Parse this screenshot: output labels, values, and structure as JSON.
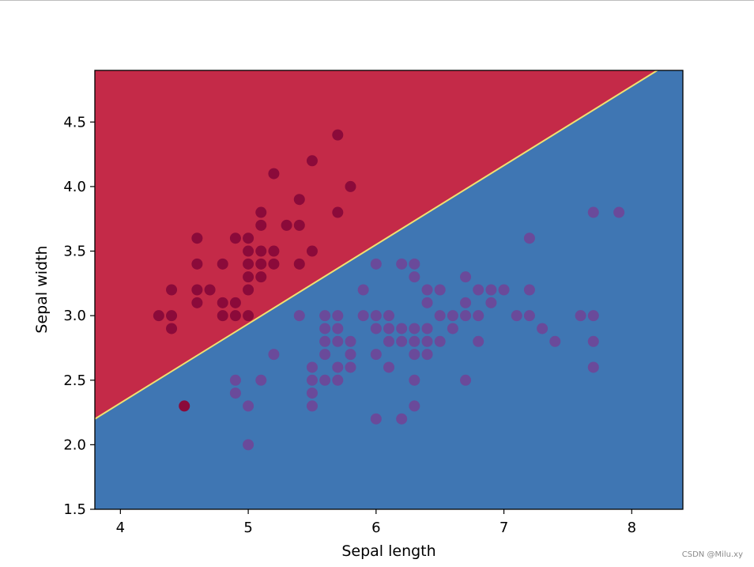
{
  "chart_data": {
    "type": "scatter",
    "title": "",
    "xlabel": "Sepal length",
    "ylabel": "Sepal width",
    "xlim": [
      3.8,
      8.4
    ],
    "ylim": [
      1.5,
      4.9
    ],
    "xticks": [
      "4",
      "5",
      "6",
      "7",
      "8"
    ],
    "yticks": [
      "1.5",
      "2.0",
      "2.5",
      "3.0",
      "3.5",
      "4.0",
      "4.5"
    ],
    "grid": false,
    "legend": "none",
    "decision_regions": {
      "boundary_line": [
        [
          3.8,
          2.2
        ],
        [
          8.2,
          4.9
        ]
      ],
      "above_color": "#c42a48",
      "below_color": "#3f76b3",
      "boundary_color": "#f0e070"
    },
    "series": [
      {
        "color": "#8b0a3a",
        "points": [
          [
            4.3,
            3.0
          ],
          [
            4.4,
            2.9
          ],
          [
            4.4,
            3.0
          ],
          [
            4.4,
            3.2
          ],
          [
            4.5,
            2.3
          ],
          [
            4.6,
            3.1
          ],
          [
            4.6,
            3.2
          ],
          [
            4.6,
            3.4
          ],
          [
            4.6,
            3.6
          ],
          [
            4.7,
            3.2
          ],
          [
            4.8,
            3.0
          ],
          [
            4.8,
            3.1
          ],
          [
            4.8,
            3.4
          ],
          [
            4.9,
            3.0
          ],
          [
            4.9,
            3.1
          ],
          [
            4.9,
            3.6
          ],
          [
            5.0,
            3.0
          ],
          [
            5.0,
            3.2
          ],
          [
            5.0,
            3.3
          ],
          [
            5.0,
            3.4
          ],
          [
            5.0,
            3.5
          ],
          [
            5.0,
            3.6
          ],
          [
            5.1,
            3.3
          ],
          [
            5.1,
            3.4
          ],
          [
            5.1,
            3.5
          ],
          [
            5.1,
            3.7
          ],
          [
            5.1,
            3.8
          ],
          [
            5.2,
            3.4
          ],
          [
            5.2,
            3.5
          ],
          [
            5.2,
            4.1
          ],
          [
            5.3,
            3.7
          ],
          [
            5.4,
            3.4
          ],
          [
            5.4,
            3.7
          ],
          [
            5.4,
            3.9
          ],
          [
            5.5,
            3.5
          ],
          [
            5.5,
            4.2
          ],
          [
            5.7,
            3.8
          ],
          [
            5.7,
            4.4
          ],
          [
            5.8,
            4.0
          ]
        ]
      },
      {
        "color": "#6a4a9a",
        "points": [
          [
            4.9,
            2.4
          ],
          [
            4.9,
            2.5
          ],
          [
            5.0,
            2.0
          ],
          [
            5.0,
            2.3
          ],
          [
            5.1,
            2.5
          ],
          [
            5.2,
            2.7
          ],
          [
            5.4,
            3.0
          ],
          [
            5.5,
            2.3
          ],
          [
            5.5,
            2.4
          ],
          [
            5.5,
            2.5
          ],
          [
            5.5,
            2.6
          ],
          [
            5.6,
            2.5
          ],
          [
            5.6,
            2.7
          ],
          [
            5.6,
            2.8
          ],
          [
            5.6,
            2.9
          ],
          [
            5.6,
            3.0
          ],
          [
            5.7,
            2.5
          ],
          [
            5.7,
            2.6
          ],
          [
            5.7,
            2.8
          ],
          [
            5.7,
            2.9
          ],
          [
            5.7,
            3.0
          ],
          [
            5.8,
            2.6
          ],
          [
            5.8,
            2.7
          ],
          [
            5.8,
            2.8
          ],
          [
            5.9,
            3.0
          ],
          [
            5.9,
            3.2
          ],
          [
            6.0,
            2.2
          ],
          [
            6.0,
            2.7
          ],
          [
            6.0,
            2.9
          ],
          [
            6.0,
            3.0
          ],
          [
            6.0,
            3.4
          ],
          [
            6.1,
            2.6
          ],
          [
            6.1,
            2.8
          ],
          [
            6.1,
            2.9
          ],
          [
            6.1,
            3.0
          ],
          [
            6.2,
            2.2
          ],
          [
            6.2,
            2.8
          ],
          [
            6.2,
            2.9
          ],
          [
            6.2,
            3.4
          ],
          [
            6.3,
            2.3
          ],
          [
            6.3,
            2.5
          ],
          [
            6.3,
            2.7
          ],
          [
            6.3,
            2.8
          ],
          [
            6.3,
            2.9
          ],
          [
            6.3,
            3.3
          ],
          [
            6.3,
            3.4
          ],
          [
            6.4,
            2.7
          ],
          [
            6.4,
            2.8
          ],
          [
            6.4,
            2.9
          ],
          [
            6.4,
            3.1
          ],
          [
            6.4,
            3.2
          ],
          [
            6.5,
            2.8
          ],
          [
            6.5,
            3.0
          ],
          [
            6.5,
            3.2
          ],
          [
            6.6,
            2.9
          ],
          [
            6.6,
            3.0
          ],
          [
            6.7,
            2.5
          ],
          [
            6.7,
            3.0
          ],
          [
            6.7,
            3.1
          ],
          [
            6.7,
            3.3
          ],
          [
            6.8,
            2.8
          ],
          [
            6.8,
            3.0
          ],
          [
            6.8,
            3.2
          ],
          [
            6.9,
            3.1
          ],
          [
            6.9,
            3.2
          ],
          [
            7.0,
            3.2
          ],
          [
            7.1,
            3.0
          ],
          [
            7.2,
            3.0
          ],
          [
            7.2,
            3.2
          ],
          [
            7.2,
            3.6
          ],
          [
            7.3,
            2.9
          ],
          [
            7.4,
            2.8
          ],
          [
            7.6,
            3.0
          ],
          [
            7.7,
            2.6
          ],
          [
            7.7,
            2.8
          ],
          [
            7.7,
            3.0
          ],
          [
            7.7,
            3.8
          ],
          [
            7.9,
            3.8
          ]
        ]
      }
    ]
  },
  "watermark": "CSDN @Milu.xy"
}
